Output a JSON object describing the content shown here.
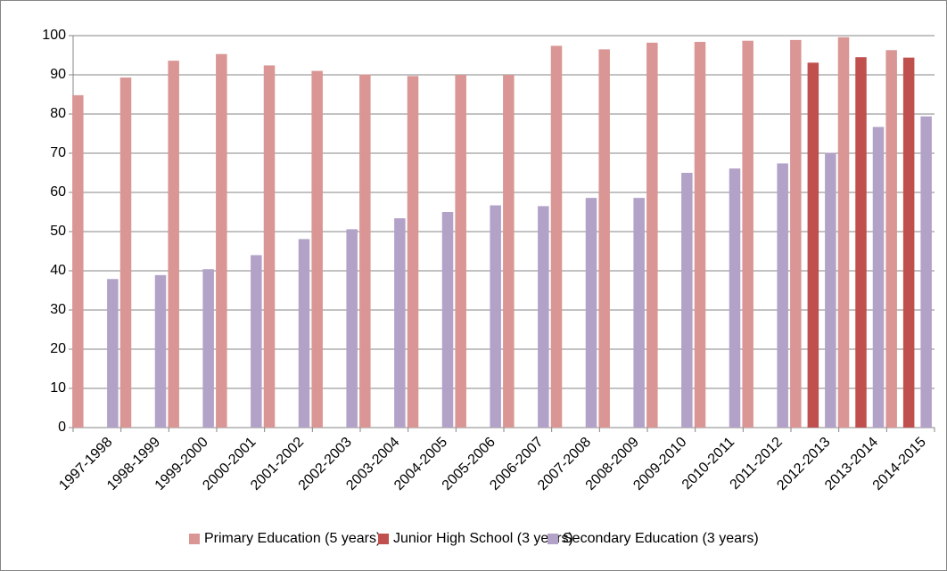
{
  "chart_data": {
    "type": "bar",
    "categories": [
      "1997-1998",
      "1998-1999",
      "1999-2000",
      "2000-2001",
      "2001-2002",
      "2002-2003",
      "2003-2004",
      "2004-2005",
      "2005-2006",
      "2006-2007",
      "2007-2008",
      "2008-2009",
      "2009-2010",
      "2010-2011",
      "2011-2012",
      "2012-2013",
      "2013-2014",
      "2014-2015"
    ],
    "series": [
      {
        "name": "Primary Education (5 years)",
        "color": "#d99694",
        "values": [
          84.8,
          89.3,
          93.6,
          95.3,
          92.4,
          91.0,
          90.1,
          89.7,
          90.0,
          90.0,
          97.4,
          96.5,
          98.2,
          98.4,
          98.7,
          98.9,
          99.6,
          96.3
        ]
      },
      {
        "name": "Junior High School (3 years)",
        "color": "#c0504d",
        "values": [
          null,
          null,
          null,
          null,
          null,
          null,
          null,
          null,
          null,
          null,
          null,
          null,
          null,
          null,
          null,
          93.1,
          94.5,
          94.4
        ]
      },
      {
        "name": "Secondary Education (3 years)",
        "color": "#b3a2c7",
        "values": [
          37.9,
          38.9,
          40.4,
          44.0,
          48.1,
          50.6,
          53.4,
          55.0,
          56.7,
          56.5,
          58.6,
          58.6,
          65.0,
          66.1,
          67.4,
          70.1,
          76.7,
          79.4
        ]
      }
    ],
    "ylim": [
      0,
      100
    ],
    "yticks": [
      0,
      10,
      20,
      30,
      40,
      50,
      60,
      70,
      80,
      90,
      100
    ],
    "grid": true,
    "legend": "bottom"
  }
}
